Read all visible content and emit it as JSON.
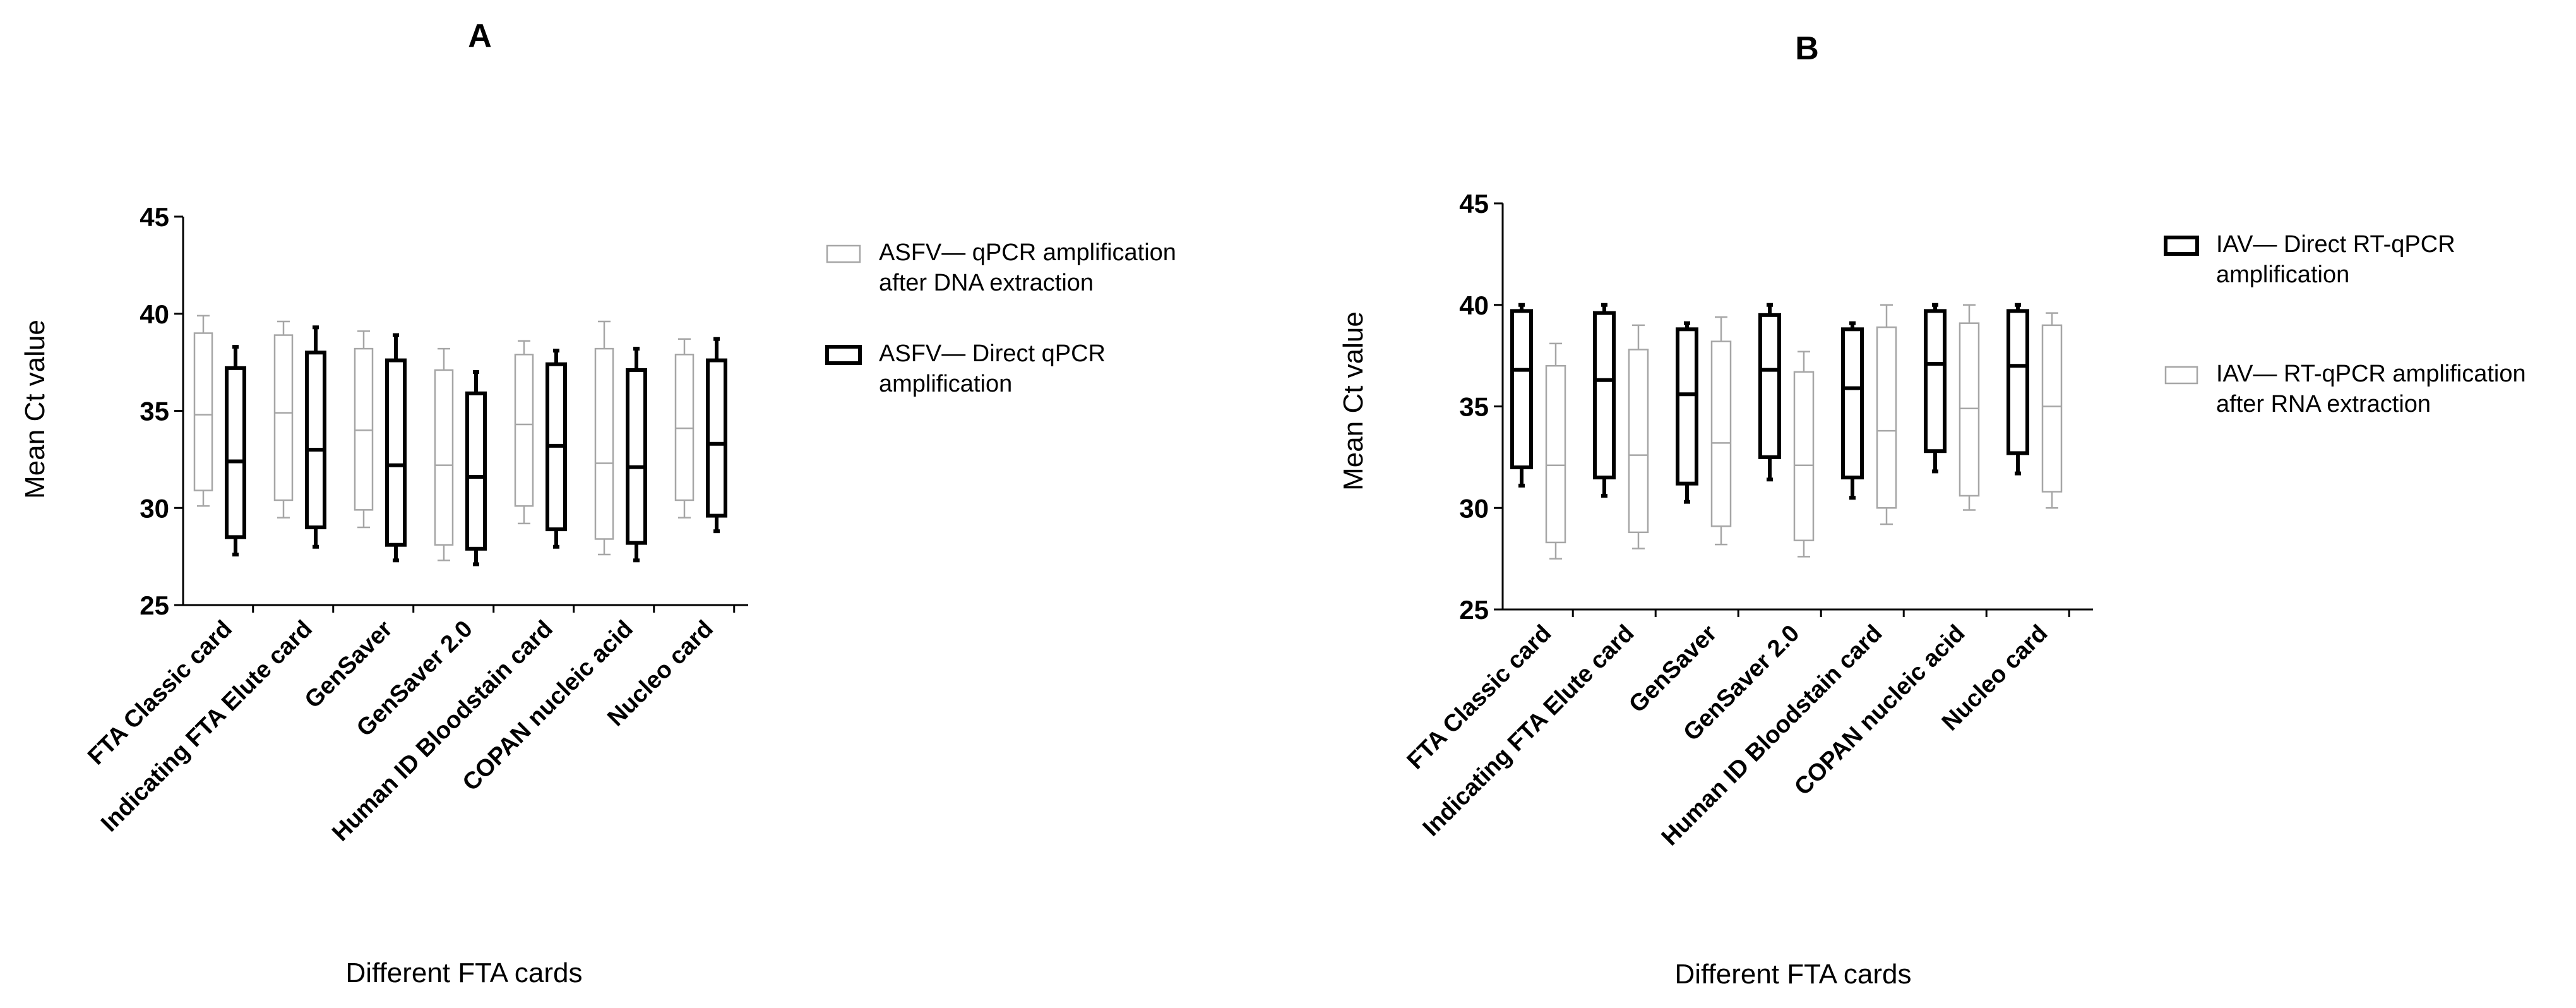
{
  "chart_data": [
    {
      "type": "box",
      "panel_label": "A",
      "xlabel": "Different FTA cards",
      "ylabel": "Mean Ct value",
      "ylim": [
        25,
        45
      ],
      "yticks": [
        25,
        30,
        35,
        40,
        45
      ],
      "categories": [
        "FTA Classic card",
        "Indicating FTA Elute card",
        "GenSaver",
        "GenSaver 2.0",
        "Human ID Bloodstain card",
        "COPAN nucleic acid",
        "Nucleo card"
      ],
      "legend": {
        "position": "right"
      },
      "series": [
        {
          "name": "ASFV— qPCR amplification after DNA extraction",
          "legend_lines": [
            "ASFV— qPCR amplification",
            "after DNA extraction"
          ],
          "color": "#a6a6a6",
          "style": "thin",
          "boxes": [
            {
              "min": 30.1,
              "q1": 30.9,
              "median": 34.8,
              "q3": 39.0,
              "max": 39.9
            },
            {
              "min": 29.5,
              "q1": 30.4,
              "median": 34.9,
              "q3": 38.9,
              "max": 39.6
            },
            {
              "min": 29.0,
              "q1": 29.9,
              "median": 34.0,
              "q3": 38.2,
              "max": 39.1
            },
            {
              "min": 27.3,
              "q1": 28.1,
              "median": 32.2,
              "q3": 37.1,
              "max": 38.2
            },
            {
              "min": 29.2,
              "q1": 30.1,
              "median": 34.3,
              "q3": 37.9,
              "max": 38.6
            },
            {
              "min": 27.6,
              "q1": 28.4,
              "median": 32.3,
              "q3": 38.2,
              "max": 39.6
            },
            {
              "min": 29.5,
              "q1": 30.4,
              "median": 34.1,
              "q3": 37.9,
              "max": 38.7
            }
          ]
        },
        {
          "name": "ASFV— Direct qPCR amplification",
          "legend_lines": [
            "ASFV— Direct qPCR",
            "amplification"
          ],
          "color": "#000000",
          "style": "thick",
          "boxes": [
            {
              "min": 27.6,
              "q1": 28.5,
              "median": 32.4,
              "q3": 37.2,
              "max": 38.3
            },
            {
              "min": 28.0,
              "q1": 29.0,
              "median": 33.0,
              "q3": 38.0,
              "max": 39.3
            },
            {
              "min": 27.3,
              "q1": 28.1,
              "median": 32.2,
              "q3": 37.6,
              "max": 38.9
            },
            {
              "min": 27.1,
              "q1": 27.9,
              "median": 31.6,
              "q3": 35.9,
              "max": 37.0
            },
            {
              "min": 28.0,
              "q1": 28.9,
              "median": 33.2,
              "q3": 37.4,
              "max": 38.1
            },
            {
              "min": 27.3,
              "q1": 28.2,
              "median": 32.1,
              "q3": 37.1,
              "max": 38.2
            },
            {
              "min": 28.8,
              "q1": 29.6,
              "median": 33.3,
              "q3": 37.6,
              "max": 38.7
            }
          ]
        }
      ]
    },
    {
      "type": "box",
      "panel_label": "B",
      "xlabel": "Different FTA cards",
      "ylabel": "Mean Ct value",
      "ylim": [
        25,
        45
      ],
      "yticks": [
        25,
        30,
        35,
        40,
        45
      ],
      "categories": [
        "FTA Classic card",
        "Indicating FTA Elute card",
        "GenSaver",
        "GenSaver 2.0",
        "Human ID Bloodstain card",
        "COPAN nucleic acid",
        "Nucleo card"
      ],
      "legend": {
        "position": "right"
      },
      "series": [
        {
          "name": "IAV— Direct RT-qPCR amplification",
          "legend_lines": [
            "IAV— Direct RT-qPCR",
            "amplification"
          ],
          "color": "#000000",
          "style": "thick",
          "boxes": [
            {
              "min": 31.1,
              "q1": 32.0,
              "median": 36.8,
              "q3": 39.7,
              "max": 40.0
            },
            {
              "min": 30.6,
              "q1": 31.5,
              "median": 36.3,
              "q3": 39.6,
              "max": 40.0
            },
            {
              "min": 30.3,
              "q1": 31.2,
              "median": 35.6,
              "q3": 38.8,
              "max": 39.1
            },
            {
              "min": 31.4,
              "q1": 32.5,
              "median": 36.8,
              "q3": 39.5,
              "max": 40.0
            },
            {
              "min": 30.5,
              "q1": 31.5,
              "median": 35.9,
              "q3": 38.8,
              "max": 39.1
            },
            {
              "min": 31.8,
              "q1": 32.8,
              "median": 37.1,
              "q3": 39.7,
              "max": 40.0
            },
            {
              "min": 31.7,
              "q1": 32.7,
              "median": 37.0,
              "q3": 39.7,
              "max": 40.0
            }
          ]
        },
        {
          "name": "IAV— RT-qPCR amplification after RNA extraction",
          "legend_lines": [
            "IAV— RT-qPCR amplification",
            "after RNA extraction"
          ],
          "color": "#a6a6a6",
          "style": "thin",
          "boxes": [
            {
              "min": 27.5,
              "q1": 28.3,
              "median": 32.1,
              "q3": 37.0,
              "max": 38.1
            },
            {
              "min": 28.0,
              "q1": 28.8,
              "median": 32.6,
              "q3": 37.8,
              "max": 39.0
            },
            {
              "min": 28.2,
              "q1": 29.1,
              "median": 33.2,
              "q3": 38.2,
              "max": 39.4
            },
            {
              "min": 27.6,
              "q1": 28.4,
              "median": 32.1,
              "q3": 36.7,
              "max": 37.7
            },
            {
              "min": 29.2,
              "q1": 30.0,
              "median": 33.8,
              "q3": 38.9,
              "max": 40.0
            },
            {
              "min": 29.9,
              "q1": 30.6,
              "median": 34.9,
              "q3": 39.1,
              "max": 40.0
            },
            {
              "min": 30.0,
              "q1": 30.8,
              "median": 35.0,
              "q3": 39.0,
              "max": 39.6
            }
          ]
        }
      ]
    }
  ]
}
